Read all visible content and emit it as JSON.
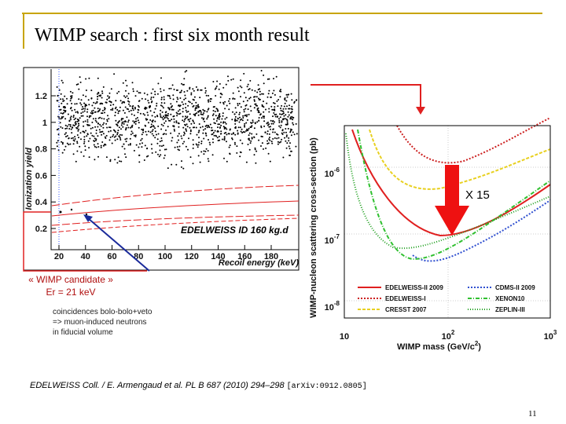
{
  "title": "WIMP search : first six month result",
  "left_plot": {
    "y_label": "Ionization yield",
    "x_label": "Recoil energy (keV)",
    "label": "EDELWEISS ID 160 kg.d",
    "x_ticks": [
      "20",
      "40",
      "60",
      "80",
      "100",
      "120",
      "140",
      "160",
      "180"
    ],
    "y_ticks": [
      "0.2",
      "0.4",
      "0.6",
      "0.8",
      "1",
      "1.2"
    ]
  },
  "right_plot": {
    "y_label": "WIMP-nucleon scattering cross-section (pb)",
    "x_label": "WIMP mass (GeV/c",
    "x_label_sup": "2",
    "x_label_end": ")",
    "x_ticks": [
      {
        "base": "10",
        "exp": ""
      },
      {
        "base": "10",
        "exp": "2"
      },
      {
        "base": "10",
        "exp": "3"
      }
    ],
    "y_ticks": [
      {
        "base": "10",
        "exp": "-6"
      },
      {
        "base": "10",
        "exp": "-7"
      },
      {
        "base": "10",
        "exp": "-8"
      }
    ],
    "legend": [
      "EDELWEISS-II 2009",
      "EDELWEISS-I",
      "CRESST 2007",
      "CDMS-II 2009",
      "XENON10",
      "ZEPLIN-III"
    ]
  },
  "arrow_label": "X 15",
  "candidate": {
    "name": "« WIMP candidate »",
    "energy": "Er = 21 keV"
  },
  "note": [
    "coincidences bolo-bolo+veto",
    "=> muon-induced neutrons",
    "in fiducial volume"
  ],
  "reference": {
    "citation": "EDELWEISS Coll. / E. Armengaud et al. PL B 687 (2010) 294–298",
    "arxiv": "[arXiv:0912.0805]"
  },
  "page_number": "11"
}
